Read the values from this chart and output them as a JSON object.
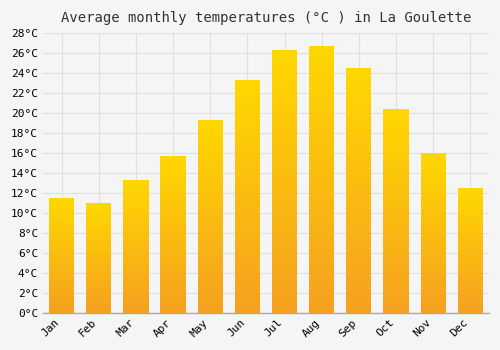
{
  "title": "Average monthly temperatures (°C ) in La Goulette",
  "months": [
    "Jan",
    "Feb",
    "Mar",
    "Apr",
    "May",
    "Jun",
    "Jul",
    "Aug",
    "Sep",
    "Oct",
    "Nov",
    "Dec"
  ],
  "temperatures": [
    11.5,
    11.0,
    13.3,
    15.7,
    19.3,
    23.3,
    26.3,
    26.7,
    24.5,
    20.4,
    16.0,
    12.5
  ],
  "bar_color_bottom": "#F5A020",
  "bar_color_top": "#FFD700",
  "bar_edge_color": "#C8860A",
  "ylim": [
    0,
    28
  ],
  "ytick_step": 2,
  "background_color": "#f5f5f5",
  "plot_bg_color": "#f5f5f5",
  "grid_color": "#e0e0e0",
  "title_fontsize": 10,
  "tick_fontsize": 8,
  "font_family": "monospace"
}
